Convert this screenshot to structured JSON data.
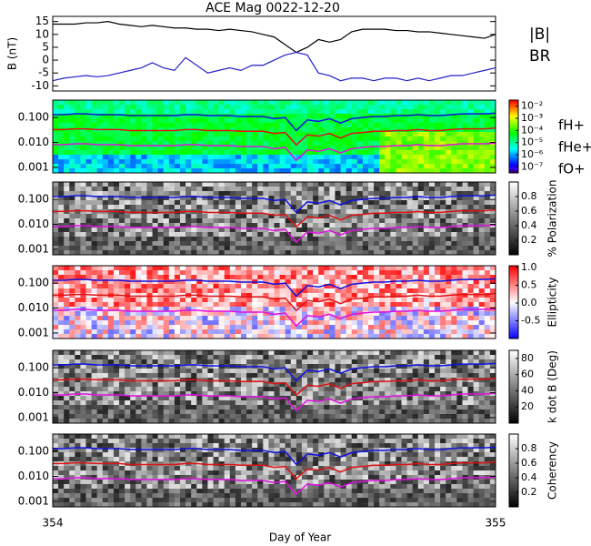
{
  "chart_data": [
    {
      "type": "line",
      "title": "ACE Mag 0022-12-20",
      "ylabel": "B (nT)",
      "xlabel": "Day of Year",
      "xlim": [
        354,
        355
      ],
      "xticks": [
        354,
        355
      ],
      "ylim": [
        -12,
        17
      ],
      "yticks": [
        15,
        10,
        5,
        0,
        -5,
        -10
      ],
      "x": [
        354.0,
        354.025,
        354.05,
        354.075,
        354.1,
        354.125,
        354.15,
        354.175,
        354.2,
        354.225,
        354.25,
        354.275,
        354.3,
        354.325,
        354.35,
        354.375,
        354.4,
        354.425,
        354.45,
        354.475,
        354.5,
        354.525,
        354.55,
        354.575,
        354.6,
        354.625,
        354.65,
        354.675,
        354.7,
        354.725,
        354.75,
        354.775,
        354.8,
        354.825,
        354.85,
        354.875,
        354.9,
        354.925,
        354.95,
        354.975,
        355.0
      ],
      "series": [
        {
          "name": "|B|",
          "color": "#000000",
          "values": [
            14,
            14,
            14,
            14.5,
            14.5,
            15,
            14,
            13.5,
            13,
            13.5,
            13,
            12.5,
            12.5,
            12,
            12,
            11.5,
            12,
            11.5,
            11,
            10,
            9,
            6,
            3,
            5,
            8,
            7,
            8,
            11,
            12,
            12,
            12,
            11.5,
            11.5,
            11,
            11,
            10.5,
            10,
            9.5,
            9,
            8.5,
            10
          ]
        },
        {
          "name": "BR",
          "color": "#2222cc",
          "values": [
            -8,
            -7,
            -6.5,
            -6,
            -6.5,
            -6,
            -5,
            -4,
            -3,
            -1,
            -3,
            -4,
            1,
            -2,
            -5,
            -4,
            -3,
            -4,
            -2,
            -2,
            0,
            2,
            3,
            2,
            -5,
            -6,
            -8,
            -7,
            -7,
            -8,
            -7,
            -7,
            -8,
            -7,
            -8,
            -7,
            -6,
            -6,
            -5,
            -4,
            -3
          ]
        }
      ]
    },
    {
      "type": "spectrogram",
      "log_y": true,
      "ylim": [
        0.0006,
        0.5
      ],
      "yticks": [
        {
          "value": 0.1,
          "label": "0.100"
        },
        {
          "value": 0.01,
          "label": "0.010"
        },
        {
          "value": 0.001,
          "label": "0.001"
        }
      ],
      "colormap": "rainbow",
      "clim": [
        -7.5,
        -1.5
      ],
      "cticks": [
        {
          "value": -2,
          "label": "10⁻²"
        },
        {
          "value": -3,
          "label": "10⁻³"
        },
        {
          "value": -4,
          "label": "10⁻⁴"
        },
        {
          "value": -5,
          "label": "10⁻⁵"
        },
        {
          "value": -6,
          "label": "10⁻⁶"
        },
        {
          "value": -7,
          "label": "10⁻⁷"
        }
      ],
      "series": [
        {
          "name": "fH+",
          "color": "#1010e0",
          "values": [
            0.13,
            0.13,
            0.14,
            0.14,
            0.13,
            0.13,
            0.13,
            0.12,
            0.12,
            0.12,
            0.12,
            0.12,
            0.13,
            0.13,
            0.12,
            0.12,
            0.12,
            0.11,
            0.11,
            0.11,
            0.09,
            0.1,
            0.03,
            0.08,
            0.07,
            0.09,
            0.06,
            0.09,
            0.1,
            0.11,
            0.11,
            0.12,
            0.12,
            0.13,
            0.12,
            0.12,
            0.13,
            0.14,
            0.14,
            0.14,
            0.15
          ]
        },
        {
          "name": "fHe+",
          "color": "#e01010",
          "values": [
            0.033,
            0.033,
            0.035,
            0.035,
            0.033,
            0.033,
            0.033,
            0.03,
            0.03,
            0.03,
            0.03,
            0.03,
            0.033,
            0.033,
            0.03,
            0.03,
            0.03,
            0.028,
            0.028,
            0.028,
            0.023,
            0.025,
            0.008,
            0.02,
            0.018,
            0.023,
            0.015,
            0.023,
            0.025,
            0.028,
            0.028,
            0.03,
            0.03,
            0.033,
            0.03,
            0.03,
            0.033,
            0.035,
            0.035,
            0.035,
            0.038
          ]
        },
        {
          "name": "fO+",
          "color": "#e010e0",
          "values": [
            0.0081,
            0.0081,
            0.0088,
            0.0088,
            0.0081,
            0.0081,
            0.0081,
            0.0075,
            0.0075,
            0.0075,
            0.0075,
            0.0075,
            0.0081,
            0.0081,
            0.0075,
            0.0075,
            0.0075,
            0.0069,
            0.0069,
            0.0069,
            0.0056,
            0.0063,
            0.0019,
            0.005,
            0.0044,
            0.0056,
            0.0038,
            0.0056,
            0.0063,
            0.0069,
            0.0069,
            0.0075,
            0.0075,
            0.0081,
            0.0075,
            0.0075,
            0.0081,
            0.0088,
            0.0088,
            0.0088,
            0.0094
          ]
        }
      ]
    },
    {
      "type": "spectrogram",
      "log_y": true,
      "ylim": [
        0.0006,
        0.5
      ],
      "yticks": [
        {
          "value": 0.1,
          "label": "0.100"
        },
        {
          "value": 0.01,
          "label": "0.010"
        },
        {
          "value": 0.001,
          "label": "0.001"
        }
      ],
      "colormap": "gray",
      "clim": [
        0,
        1
      ],
      "cticks": [
        0.8,
        0.6,
        0.4,
        0.2
      ],
      "colorbar_label": "% Polarization"
    },
    {
      "type": "spectrogram",
      "log_y": true,
      "ylim": [
        0.0006,
        0.5
      ],
      "yticks": [
        {
          "value": 0.1,
          "label": "0.100"
        },
        {
          "value": 0.01,
          "label": "0.010"
        },
        {
          "value": 0.001,
          "label": "0.001"
        }
      ],
      "colormap": "bwr",
      "clim": [
        -1,
        1.05
      ],
      "cticks": [
        {
          "value": 1,
          "label": "1.0"
        },
        0.5,
        {
          "value": 0,
          "label": "0.0"
        },
        -0.5
      ],
      "colorbar_label": "Ellipticity"
    },
    {
      "type": "spectrogram",
      "log_y": true,
      "ylim": [
        0.0006,
        0.5
      ],
      "yticks": [
        {
          "value": 0.1,
          "label": "0.100"
        },
        {
          "value": 0.01,
          "label": "0.010"
        },
        {
          "value": 0.001,
          "label": "0.001"
        }
      ],
      "colormap": "gray",
      "clim": [
        0,
        90
      ],
      "cticks": [
        80,
        60,
        40,
        20
      ],
      "colorbar_label": "k dot B (Deg)"
    },
    {
      "type": "spectrogram",
      "log_y": true,
      "ylim": [
        0.0006,
        0.5
      ],
      "yticks": [
        {
          "value": 0.1,
          "label": "0.100"
        },
        {
          "value": 0.01,
          "label": "0.010"
        },
        {
          "value": 0.001,
          "label": "0.001"
        }
      ],
      "colormap": "gray",
      "clim": [
        0,
        1
      ],
      "cticks": [
        0.8,
        0.6,
        0.4,
        0.2
      ],
      "colorbar_label": "Coherency"
    }
  ]
}
